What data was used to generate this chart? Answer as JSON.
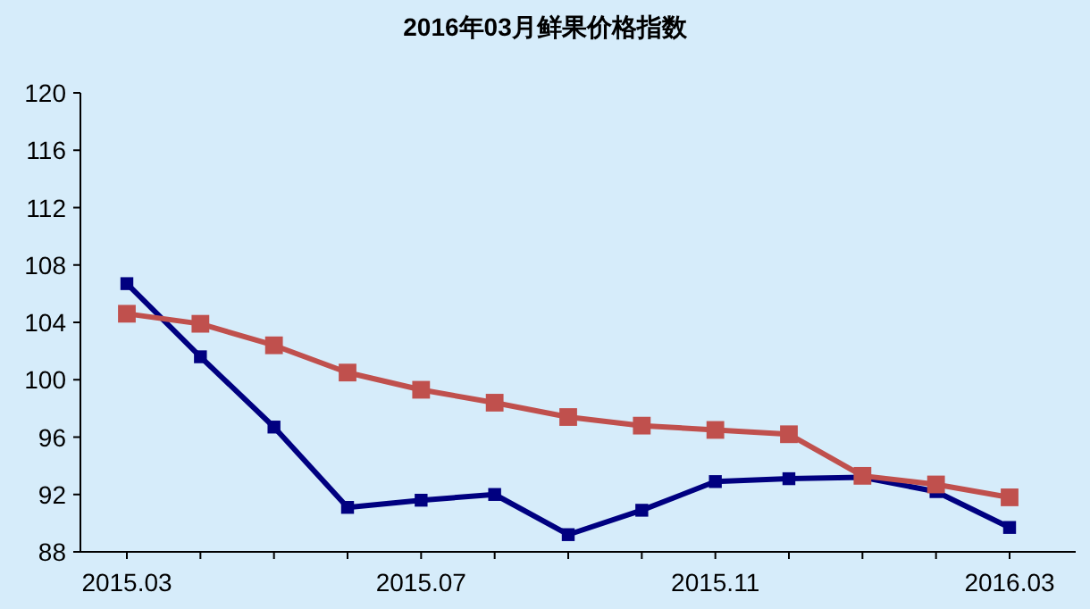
{
  "chart_data": {
    "type": "line",
    "title": "2016年03月鲜果价格指数",
    "categories": [
      "2015.03",
      null,
      null,
      null,
      "2015.07",
      null,
      null,
      null,
      "2015.11",
      null,
      null,
      null,
      "2016.03"
    ],
    "series": [
      {
        "color": "#000080",
        "values": [
          106.7,
          101.6,
          96.7,
          91.1,
          91.6,
          92.0,
          89.2,
          90.9,
          92.9,
          93.1,
          93.2,
          92.2,
          89.7
        ]
      },
      {
        "color": "#c0504d",
        "values": [
          104.6,
          103.9,
          102.4,
          100.5,
          99.3,
          98.4,
          97.4,
          96.8,
          96.5,
          96.2,
          93.3,
          92.7,
          91.8
        ]
      }
    ],
    "ylim": [
      88,
      120
    ],
    "yticks": [
      88,
      92,
      96,
      100,
      104,
      108,
      112,
      116,
      120
    ],
    "grid": false,
    "marker": "square"
  }
}
